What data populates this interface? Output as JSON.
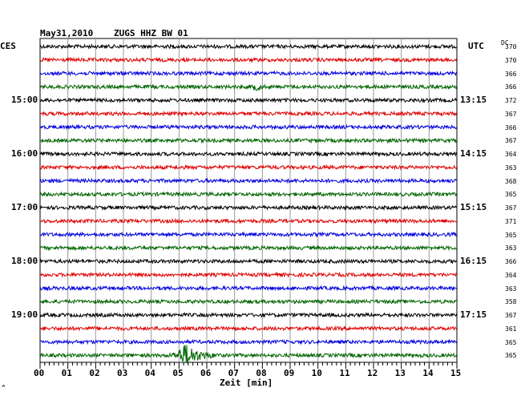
{
  "header": {
    "date": "May31,2010",
    "station": "ZUGS HHZ BW 01",
    "left_tz": "CES",
    "right_tz": "UTC",
    "dc_label": "DC"
  },
  "footer": {
    "xlabel": "Zeit [min]",
    "corner_mark": "^"
  },
  "chart_data": {
    "type": "line",
    "title": "May31,2010  ZUGS HHZ BW 01",
    "xlabel": "Zeit [min]",
    "xlim": [
      0,
      15
    ],
    "x_ticks": [
      "00",
      "01",
      "02",
      "03",
      "04",
      "05",
      "06",
      "07",
      "08",
      "09",
      "10",
      "11",
      "12",
      "13",
      "14",
      "15"
    ],
    "left_time_labels": [
      "15:00",
      "16:00",
      "17:00",
      "18:00",
      "19:00"
    ],
    "right_time_labels": [
      "13:15",
      "14:15",
      "15:15",
      "16:15",
      "17:15"
    ],
    "trace_colors": [
      "#000000",
      "#e00000",
      "#0000e0",
      "#006400"
    ],
    "dc_offsets": [
      370,
      370,
      366,
      366,
      372,
      367,
      366,
      367,
      364,
      363,
      368,
      365,
      367,
      371,
      365,
      363,
      366,
      364,
      363,
      358,
      367,
      361,
      365,
      365
    ],
    "events": [
      {
        "trace": 3,
        "minute": 7.8,
        "amplitude": "small"
      },
      {
        "trace": 23,
        "minute": 5.3,
        "amplitude": "large"
      }
    ],
    "grid": true
  }
}
